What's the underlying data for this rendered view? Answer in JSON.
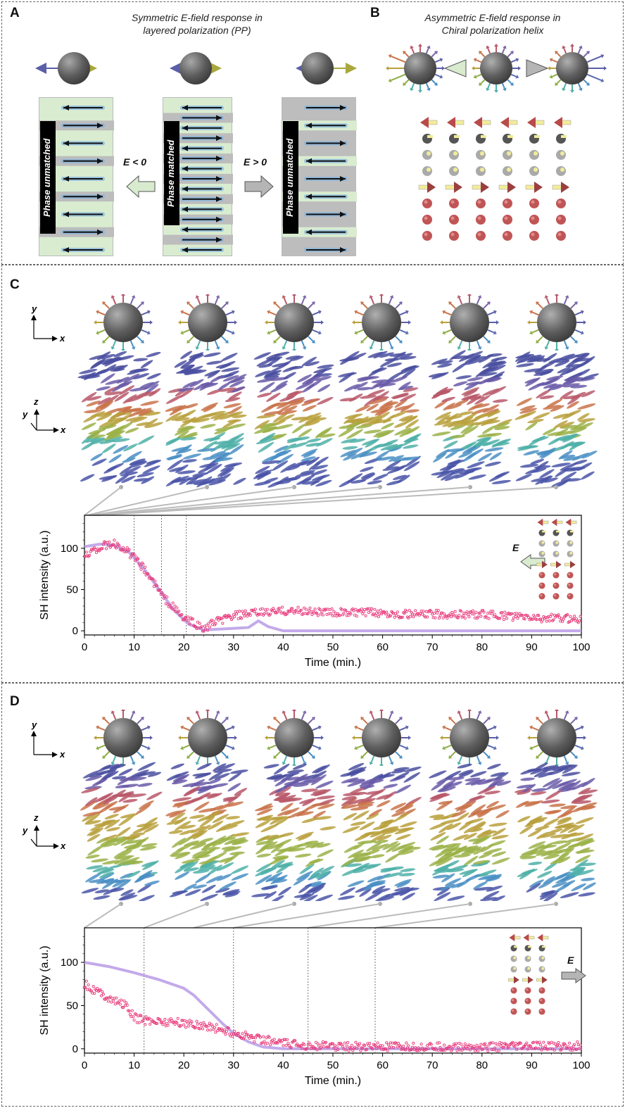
{
  "panel_a": {
    "label": "A",
    "title_line1": "Symmetric E-field response in",
    "title_line2": "layered polarization (PP)",
    "left_stack_label": "Phase unmatched",
    "mid_stack_label": "Phase matched",
    "right_stack_label": "Phase unmatched",
    "field_neg": "E < 0",
    "field_pos": "E > 0"
  },
  "panel_b": {
    "label": "B",
    "title_line1": "Asymmetric E-field response in",
    "title_line2": "Chiral polarization helix"
  },
  "panel_c": {
    "label": "C",
    "axes_xy": {
      "y": "y",
      "x": "x"
    },
    "axes_xyz": {
      "z": "z",
      "y": "y",
      "x": "x"
    },
    "field_label": "E"
  },
  "panel_d": {
    "label": "D",
    "axes_xy": {
      "y": "y",
      "x": "x"
    },
    "axes_xyz": {
      "z": "z",
      "y": "y",
      "x": "x"
    },
    "field_label": "E"
  },
  "colors": {
    "data_points": "#e83a7a",
    "fit_line": "#b99be6",
    "sphere": "#6a6a6a",
    "panel_bg_green": "#d9ecd0",
    "panel_bg_gray": "#bdbdbd"
  },
  "chart_data": [
    {
      "type": "scatter",
      "xlabel": "Time (min.)",
      "ylabel": "SH intensity (a.u.)",
      "xlim": [
        0,
        100
      ],
      "ylim": [
        -5,
        140
      ],
      "x_ticks": [
        0,
        10,
        20,
        30,
        40,
        50,
        60,
        70,
        80,
        90,
        100
      ],
      "y_ticks": [
        0,
        50,
        100
      ],
      "marker_lines_x": [
        10,
        15.5,
        20.5
      ],
      "series": [
        {
          "kind": "points",
          "x": [
            0,
            2,
            4,
            6,
            8,
            10,
            12,
            14,
            16,
            18,
            20,
            22,
            24,
            26,
            30,
            35,
            40,
            45,
            50,
            55,
            60,
            65,
            70,
            75,
            80,
            85,
            90,
            95,
            100
          ],
          "y": [
            92,
            98,
            103,
            105,
            100,
            88,
            75,
            58,
            40,
            28,
            15,
            10,
            2,
            10,
            18,
            22,
            24,
            24,
            22,
            22,
            22,
            20,
            20,
            20,
            20,
            18,
            16,
            15,
            15
          ]
        },
        {
          "kind": "line",
          "x": [
            0,
            3,
            6,
            9,
            12,
            15,
            18,
            21,
            24,
            27,
            30,
            33,
            35,
            37,
            40,
            45,
            60,
            80,
            100
          ],
          "y": [
            102,
            105,
            104,
            95,
            75,
            50,
            25,
            8,
            1,
            2,
            3,
            4,
            12,
            5,
            0,
            0,
            0,
            0,
            0
          ]
        }
      ]
    },
    {
      "type": "scatter",
      "xlabel": "Time (min.)",
      "ylabel": "SH intensity (a.u.)",
      "xlim": [
        0,
        100
      ],
      "ylim": [
        -5,
        140
      ],
      "x_ticks": [
        0,
        10,
        20,
        30,
        40,
        50,
        60,
        70,
        80,
        90,
        100
      ],
      "y_ticks": [
        0,
        50,
        100
      ],
      "marker_lines_x": [
        12,
        30,
        45,
        58.5
      ],
      "series": [
        {
          "kind": "points",
          "x": [
            0,
            2,
            4,
            6,
            8,
            10,
            12,
            15,
            20,
            25,
            30,
            35,
            40,
            45,
            50,
            60,
            70,
            80,
            90,
            100
          ],
          "y": [
            75,
            68,
            62,
            55,
            52,
            36,
            33,
            32,
            30,
            26,
            18,
            12,
            6,
            4,
            3,
            2,
            2,
            2,
            3,
            3
          ]
        },
        {
          "kind": "line",
          "x": [
            0,
            5,
            10,
            15,
            20,
            22,
            25,
            28,
            30,
            33,
            36,
            40,
            50,
            100
          ],
          "y": [
            100,
            95,
            88,
            80,
            70,
            62,
            45,
            28,
            18,
            8,
            2,
            0,
            0,
            0
          ]
        }
      ]
    }
  ]
}
